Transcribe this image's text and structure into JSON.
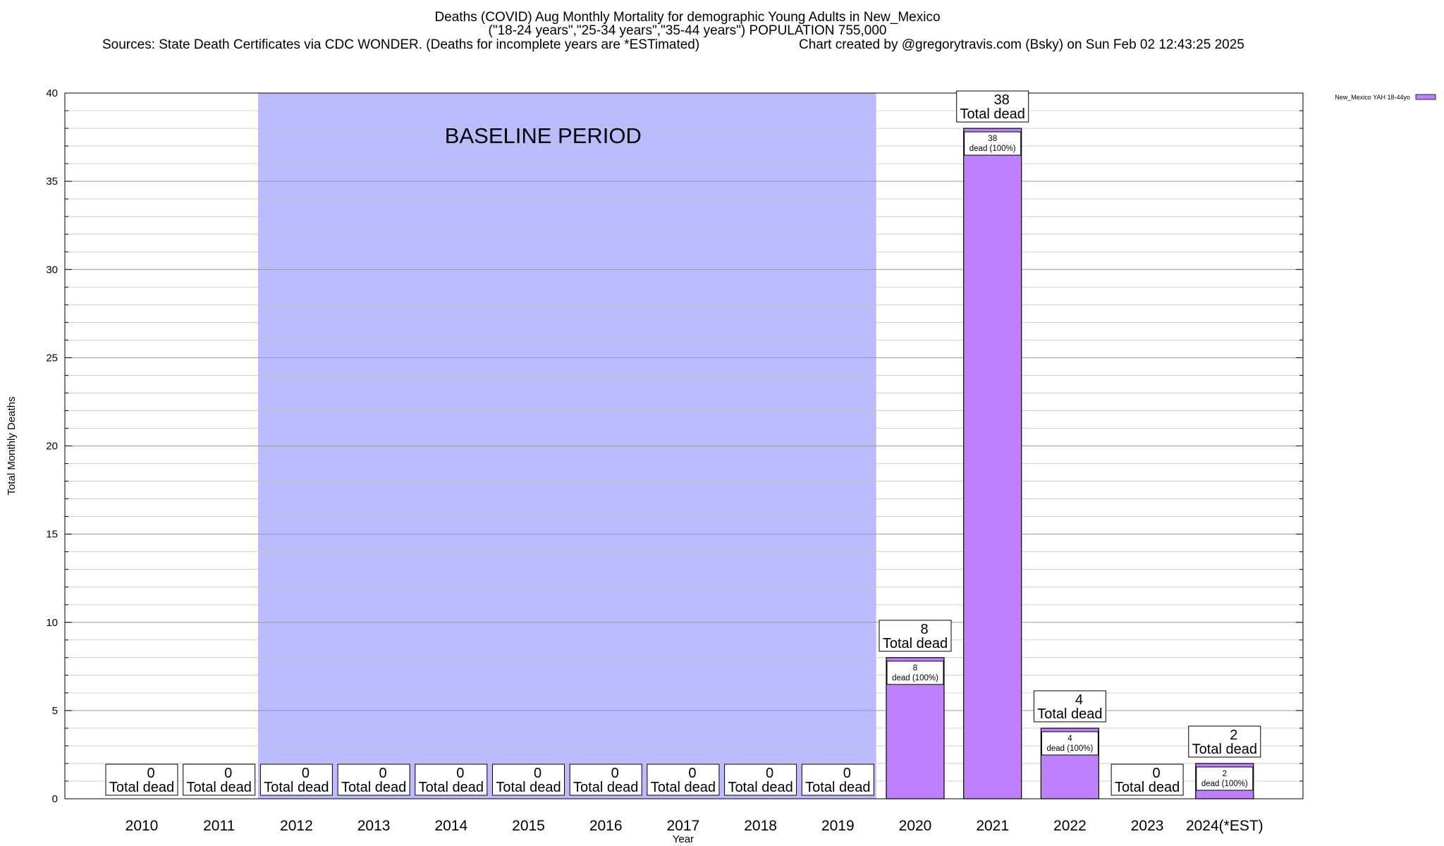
{
  "title": "Deaths (COVID) Aug Monthly Mortality for demographic Young Adults in New_Mexico",
  "subtitle": "(\"18-24 years\",\"25-34 years\",\"35-44 years\") POPULATION 755,000",
  "sources": "Sources: State Death Certificates via CDC WONDER. (Deaths for incomplete years are *ESTimated)",
  "credit": "Chart created by @gregorytravis.com (Bsky) on Sun Feb 02 12:43:25 2025",
  "chart_data": {
    "type": "bar",
    "title": "Deaths (COVID) Aug Monthly Mortality for demographic Young Adults in New_Mexico",
    "xlabel": "Year",
    "ylabel": "Total Monthly Deaths",
    "ylim": [
      0,
      40
    ],
    "yticks": [
      0,
      5,
      10,
      15,
      20,
      25,
      30,
      35,
      40
    ],
    "grid": true,
    "legend_position": "top-right",
    "categories": [
      "2010",
      "2011",
      "2012",
      "2013",
      "2014",
      "2015",
      "2016",
      "2017",
      "2018",
      "2019",
      "2020",
      "2021",
      "2022",
      "2023",
      "2024(*EST)"
    ],
    "series": [
      {
        "name": "New_Mexico YAH 18-44yo",
        "color": "#bf80ff",
        "values": [
          0,
          0,
          0,
          0,
          0,
          0,
          0,
          0,
          0,
          0,
          8,
          38,
          4,
          0,
          2
        ]
      }
    ],
    "total_label": "Total dead",
    "segment_label_suffix": "dead (100%)",
    "baseline": {
      "label": "BASELINE PERIOD",
      "from": "2012",
      "to": "2019",
      "color": "#bbbbff"
    }
  }
}
